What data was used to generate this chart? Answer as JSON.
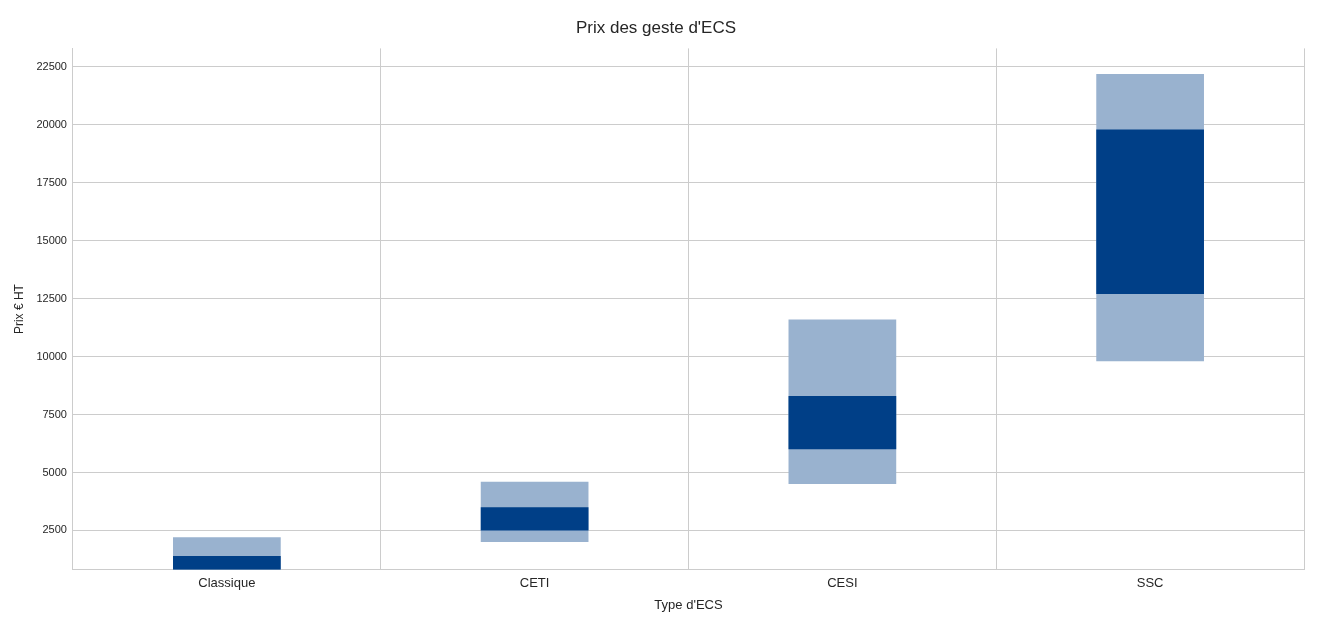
{
  "chart_data": {
    "type": "bar",
    "title": "Prix des geste d'ECS",
    "xlabel": "Type d'ECS",
    "ylabel": "Prix € HT",
    "categories": [
      "Classique",
      "CETI",
      "CESI",
      "SSC"
    ],
    "series": [
      {
        "color": "#99b2cf",
        "values": [
          1400,
          2600,
          7100,
          12400
        ],
        "base": [
          800,
          2000,
          4500,
          9800
        ]
      },
      {
        "color": "#003f87",
        "values": [
          600,
          1000,
          2300,
          7100
        ],
        "base": [
          800,
          2500,
          6000,
          12700
        ]
      }
    ],
    "ylim": [
      800,
      23300
    ],
    "yticks": [
      2500,
      5000,
      7500,
      10000,
      12500,
      15000,
      17500,
      20000,
      22500
    ],
    "grid": true,
    "legend": false
  }
}
